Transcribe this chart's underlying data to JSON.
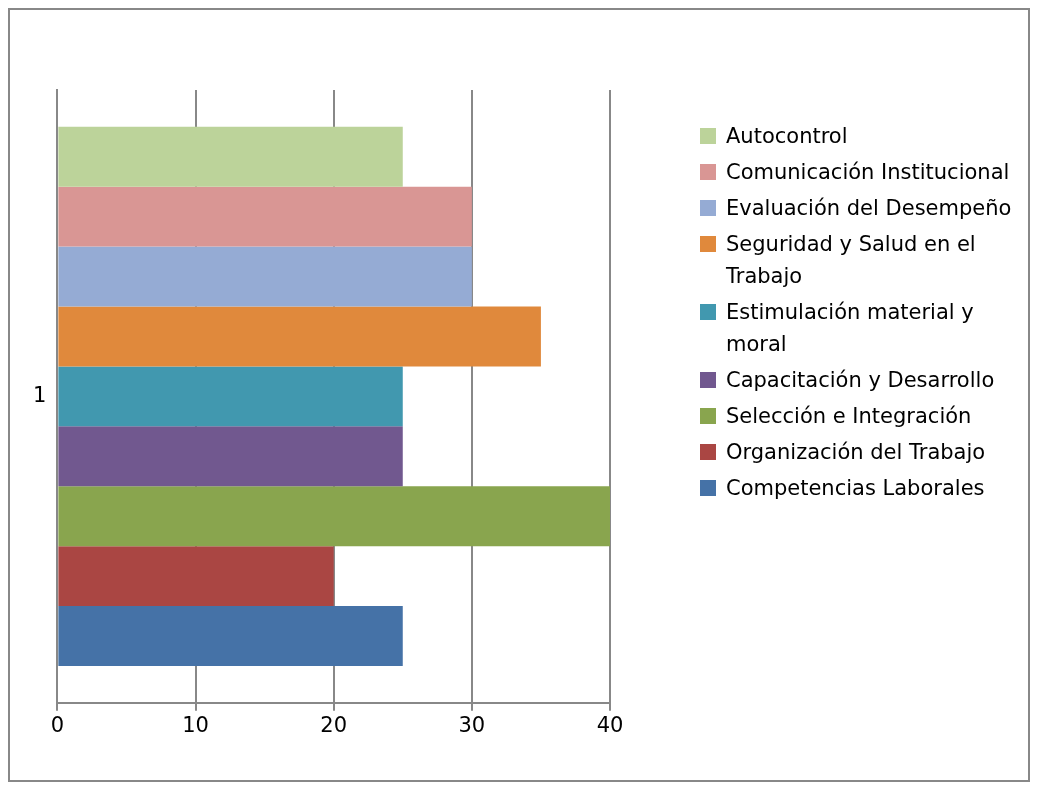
{
  "chart_data": {
    "type": "bar",
    "orientation": "horizontal",
    "categories": [
      "1"
    ],
    "series": [
      {
        "name": "Autocontrol",
        "color": "#bcd39a",
        "values": [
          25
        ]
      },
      {
        "name": "Comunicación Institucional",
        "color": "#d99694",
        "values": [
          30
        ]
      },
      {
        "name": "Evaluación del Desempeño",
        "color": "#95abd4",
        "values": [
          30
        ]
      },
      {
        "name": "Seguridad y Salud en el Trabajo",
        "color": "#e0893c",
        "values": [
          35
        ]
      },
      {
        "name": "Estimulación material y moral",
        "color": "#4198af",
        "values": [
          25
        ]
      },
      {
        "name": "Capacitación y Desarrollo",
        "color": "#71588f",
        "values": [
          25
        ]
      },
      {
        "name": "Selección e Integración",
        "color": "#89a54e",
        "values": [
          40
        ]
      },
      {
        "name": "Organización del Trabajo",
        "color": "#aa4643",
        "values": [
          20
        ]
      },
      {
        "name": "Competencias Laborales",
        "color": "#4572a7",
        "values": [
          25
        ]
      }
    ],
    "xlim": [
      0,
      40
    ],
    "xticks": [
      0,
      10,
      20,
      30,
      40
    ],
    "grid": "x",
    "legend": "right"
  }
}
